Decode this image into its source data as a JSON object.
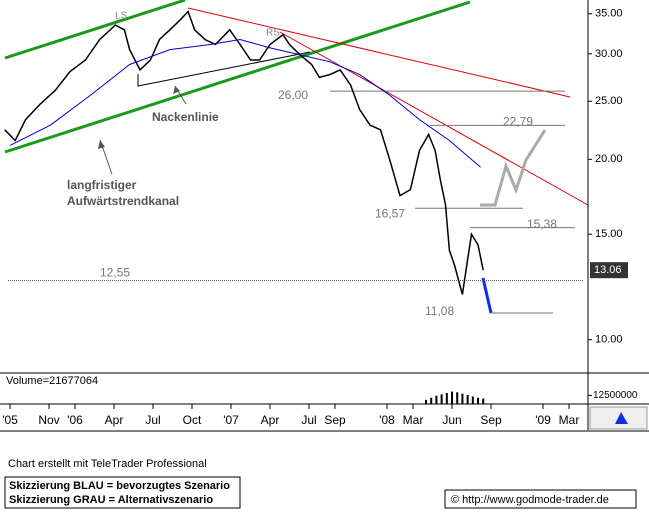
{
  "chart_data": [
    {
      "type": "line",
      "annotations": [
        "LS",
        "RS",
        "Nackenlinie",
        "langfristiger",
        "Aufwärtstrendkanal"
      ],
      "xlim": [
        -5.77,
        39.46
      ],
      "xticks": [
        {
          "value": -5,
          "label": "'05"
        },
        {
          "value": -2,
          "label": "Nov"
        },
        {
          "value": 0,
          "label": "'06"
        },
        {
          "value": 3,
          "label": "Apr"
        },
        {
          "value": 6,
          "label": "Jul"
        },
        {
          "value": 9,
          "label": "Oct"
        },
        {
          "value": 12,
          "label": "'07"
        },
        {
          "value": 15,
          "label": "Apr"
        },
        {
          "value": 18,
          "label": "Jul"
        },
        {
          "value": 20,
          "label": "Sep"
        },
        {
          "value": 24,
          "label": "'08"
        },
        {
          "value": 26,
          "label": "Mar"
        },
        {
          "value": 29,
          "label": "Jun"
        },
        {
          "value": 32,
          "label": "Sep"
        },
        {
          "value": 36,
          "label": "'09"
        },
        {
          "value": 38,
          "label": "Mar"
        }
      ],
      "ylim": [
        8.83,
        36.9
      ],
      "log_scale": true,
      "grid": false,
      "yticks": [
        {
          "value": 10,
          "label": "10.00"
        },
        {
          "value": 15,
          "label": "15.00"
        },
        {
          "value": 20,
          "label": "20.00"
        },
        {
          "value": 25,
          "label": "25.00"
        },
        {
          "value": 30,
          "label": "30.00"
        },
        {
          "value": 35,
          "label": "35.00"
        }
      ],
      "series": [
        {
          "color": "#000000",
          "x": [
            -5.4,
            -4.6,
            -3.8,
            -2.7,
            -1.5,
            -0.4,
            0.8,
            1.9,
            3.1,
            3.8,
            4.2,
            5.0,
            5.8,
            6.5,
            7.3,
            8.1,
            8.7,
            9.2,
            10.0,
            10.8,
            11.9,
            12.7,
            13.5,
            14.2,
            15.0,
            16.0,
            16.5,
            17.3,
            18.2,
            18.8,
            19.6,
            20.4,
            21.2,
            21.9,
            22.7,
            23.5,
            24.2,
            25.0,
            25.8,
            26.5,
            27.2,
            27.7,
            28.1,
            28.5,
            28.8,
            29.2,
            29.8,
            30.2,
            30.5,
            31.0,
            31.4
          ],
          "values": [
            22.4,
            21.5,
            23.3,
            24.7,
            26.1,
            28.0,
            29.3,
            31.7,
            33.5,
            32.9,
            30.5,
            28.2,
            29.3,
            31.7,
            32.9,
            34.2,
            35.3,
            32.9,
            31.7,
            31.1,
            32.9,
            31.1,
            29.3,
            29.3,
            31.1,
            32.3,
            31.1,
            29.9,
            28.8,
            27.4,
            27.7,
            28.2,
            26.6,
            24.2,
            22.8,
            22.4,
            20.0,
            17.4,
            17.8,
            20.7,
            22.0,
            20.7,
            18.5,
            16.8,
            14.1,
            13.3,
            11.9,
            13.6,
            15.0,
            14.4,
            13.06
          ]
        },
        {
          "color": "#0000cc",
          "x": [
            -5.0,
            -1.9,
            1.2,
            4.2,
            7.3,
            10.4,
            12.7,
            15.0,
            17.3,
            19.6,
            21.9,
            24.2,
            26.5,
            28.8,
            31.2
          ],
          "values": [
            21.1,
            22.8,
            25.6,
            28.8,
            30.5,
            31.1,
            31.7,
            30.7,
            29.9,
            29.1,
            27.7,
            25.6,
            23.3,
            21.5,
            19.4
          ]
        }
      ],
      "levels": [
        {
          "value": 26.0,
          "label": "26,00"
        },
        {
          "value": 22.79,
          "label": "22,79"
        },
        {
          "value": 16.57,
          "label": "16,57"
        },
        {
          "value": 15.38,
          "label": "15,38"
        },
        {
          "value": 12.55,
          "label": "12,55"
        },
        {
          "value": 11.08,
          "label": "11,08"
        }
      ],
      "last_price": 13.06
    },
    {
      "type": "bar",
      "title": "Volume=21677064",
      "color": "#000000",
      "x": [
        27.0,
        27.4,
        27.8,
        28.2,
        28.6,
        29.0,
        29.4,
        29.8,
        30.2,
        30.6,
        31.0,
        31.4
      ],
      "values": [
        6000000,
        9000000,
        12000000,
        14000000,
        16000000,
        18000000,
        17000000,
        15000000,
        13000000,
        11000000,
        9000000,
        8000000
      ],
      "ylim": [
        0,
        45000000
      ],
      "yticks": [
        12500000
      ]
    }
  ],
  "footer": {
    "credit": "Chart erstellt mit TeleTrader Professional",
    "legend": [
      "Skizzierung BLAU = bevorzugtes Szenario",
      "Skizzierung GRAU = Alternativszenario"
    ],
    "copyright": "© http://www.godmode-trader.de"
  }
}
